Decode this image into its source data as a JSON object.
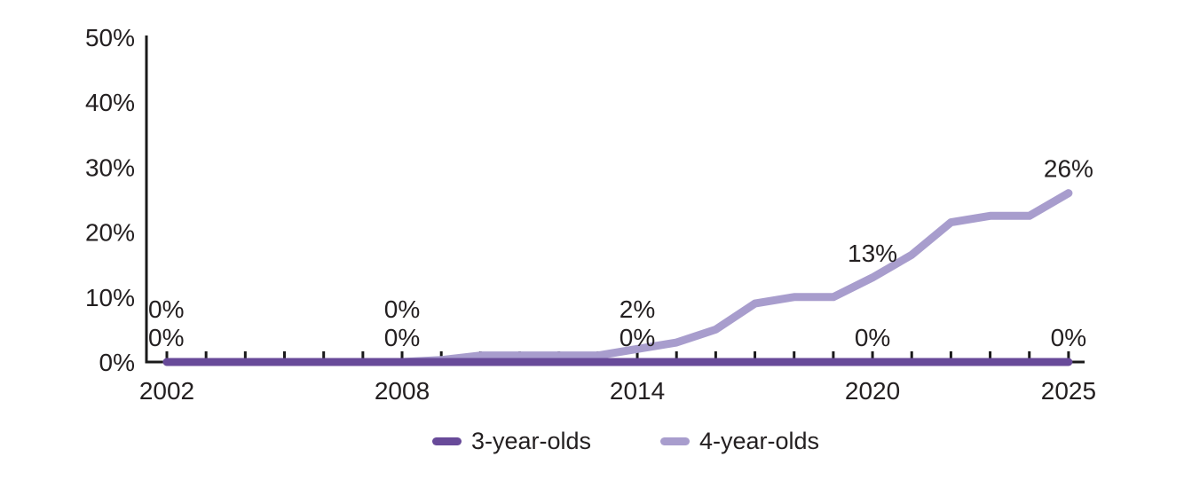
{
  "chart_data": {
    "type": "line",
    "title": "",
    "xlabel": "",
    "ylabel": "",
    "x": [
      2002,
      2003,
      2004,
      2005,
      2006,
      2007,
      2008,
      2009,
      2010,
      2011,
      2012,
      2013,
      2014,
      2015,
      2016,
      2017,
      2018,
      2019,
      2020,
      2021,
      2022,
      2023,
      2024,
      2025
    ],
    "x_ticks": [
      2002,
      2008,
      2014,
      2020,
      2025
    ],
    "y_ticks": [
      0,
      10,
      20,
      30,
      40,
      50
    ],
    "ylim": [
      0,
      50
    ],
    "y_unit": "%",
    "grid": false,
    "legend_position": "bottom",
    "axis_color": "#1a1a1a",
    "text_color": "#231f20",
    "series": [
      {
        "name": "3-year-olds",
        "color": "#684a99",
        "values": [
          0,
          0,
          0,
          0,
          0,
          0,
          0,
          0,
          0,
          0,
          0,
          0,
          0,
          0,
          0,
          0,
          0,
          0,
          0,
          0,
          0,
          0,
          0,
          0
        ]
      },
      {
        "name": "4-year-olds",
        "color": "#a89dcd",
        "values": [
          0,
          0,
          0,
          0,
          0,
          0,
          0,
          0.3,
          1,
          1,
          1,
          1,
          2,
          3,
          5,
          9,
          10,
          10,
          13,
          16.5,
          21.5,
          22.5,
          22.5,
          26
        ]
      }
    ],
    "annotations": [
      {
        "text": "0%",
        "series": "4-year-olds",
        "year": 2002,
        "row": "upper",
        "align": "start"
      },
      {
        "text": "0%",
        "series": "3-year-olds",
        "year": 2002,
        "row": "lower",
        "align": "start"
      },
      {
        "text": "0%",
        "series": "4-year-olds",
        "year": 2008,
        "row": "upper"
      },
      {
        "text": "0%",
        "series": "3-year-olds",
        "year": 2008,
        "row": "lower"
      },
      {
        "text": "2%",
        "series": "4-year-olds",
        "year": 2014,
        "row": "upper"
      },
      {
        "text": "0%",
        "series": "3-year-olds",
        "year": 2014,
        "row": "lower"
      },
      {
        "text": "13%",
        "series": "4-year-olds",
        "year": 2020,
        "row": "above",
        "value": 13
      },
      {
        "text": "0%",
        "series": "3-year-olds",
        "year": 2020,
        "row": "lower"
      },
      {
        "text": "26%",
        "series": "4-year-olds",
        "year": 2025,
        "row": "above",
        "value": 26
      },
      {
        "text": "0%",
        "series": "3-year-olds",
        "year": 2025,
        "row": "lower"
      }
    ]
  }
}
